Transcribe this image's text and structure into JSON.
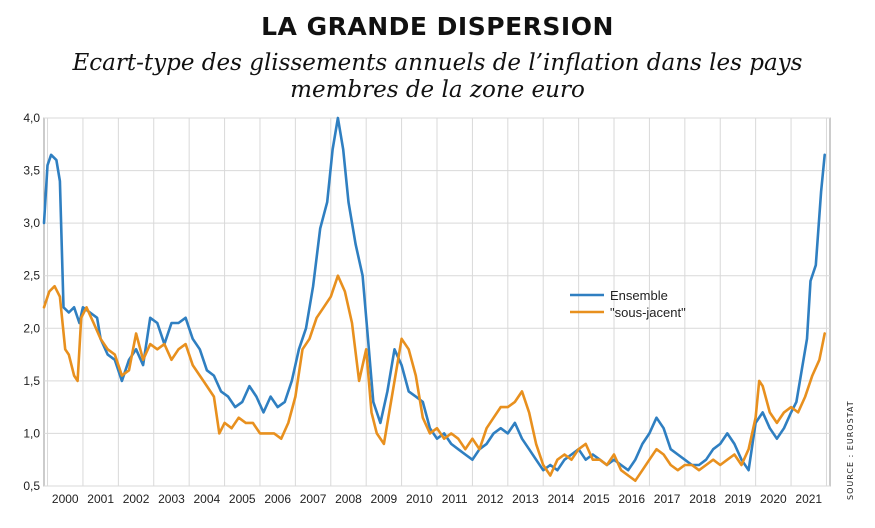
{
  "source": "SOURCE : EUROSTAT",
  "chart_data": {
    "type": "line",
    "title": "LA GRANDE DISPERSION",
    "subtitle": "Ecart-type des glissements annuels de l’inflation dans les pays membres de la zone  euro",
    "xlabel": "",
    "ylabel": "",
    "ylim": [
      0.5,
      4.0
    ],
    "xlim": [
      1999.9,
      2022.1
    ],
    "yticks": [
      "0,5",
      "1,0",
      "1,5",
      "2,0",
      "2,5",
      "3,0",
      "3,5",
      "4,0"
    ],
    "yticks_values": [
      0.5,
      1.0,
      1.5,
      2.0,
      2.5,
      3.0,
      3.5,
      4.0
    ],
    "xticks": [
      "2000",
      "2001",
      "2002",
      "2003",
      "2004",
      "2005",
      "2006",
      "2007",
      "2008",
      "2009",
      "2010",
      "2011",
      "2012",
      "2013",
      "2014",
      "2015",
      "2016",
      "2017",
      "2018",
      "2019",
      "2020",
      "2021"
    ],
    "grid": true,
    "legend_position": "right",
    "series": [
      {
        "name": "Ensemble",
        "color": "#2f7fc1",
        "points": [
          [
            1999.9,
            3.0
          ],
          [
            2000.0,
            3.55
          ],
          [
            2000.1,
            3.65
          ],
          [
            2000.25,
            3.6
          ],
          [
            2000.35,
            3.4
          ],
          [
            2000.45,
            2.2
          ],
          [
            2000.6,
            2.15
          ],
          [
            2000.75,
            2.2
          ],
          [
            2000.9,
            2.05
          ],
          [
            2001.0,
            2.2
          ],
          [
            2001.2,
            2.15
          ],
          [
            2001.4,
            2.1
          ],
          [
            2001.5,
            1.9
          ],
          [
            2001.7,
            1.75
          ],
          [
            2001.9,
            1.7
          ],
          [
            2002.1,
            1.5
          ],
          [
            2002.3,
            1.7
          ],
          [
            2002.5,
            1.8
          ],
          [
            2002.7,
            1.65
          ],
          [
            2002.9,
            2.1
          ],
          [
            2003.1,
            2.05
          ],
          [
            2003.3,
            1.85
          ],
          [
            2003.5,
            2.05
          ],
          [
            2003.7,
            2.05
          ],
          [
            2003.9,
            2.1
          ],
          [
            2004.1,
            1.9
          ],
          [
            2004.3,
            1.8
          ],
          [
            2004.5,
            1.6
          ],
          [
            2004.7,
            1.55
          ],
          [
            2004.9,
            1.4
          ],
          [
            2005.1,
            1.35
          ],
          [
            2005.3,
            1.25
          ],
          [
            2005.5,
            1.3
          ],
          [
            2005.7,
            1.45
          ],
          [
            2005.9,
            1.35
          ],
          [
            2006.1,
            1.2
          ],
          [
            2006.3,
            1.35
          ],
          [
            2006.5,
            1.25
          ],
          [
            2006.7,
            1.3
          ],
          [
            2006.9,
            1.5
          ],
          [
            2007.1,
            1.8
          ],
          [
            2007.3,
            2.0
          ],
          [
            2007.5,
            2.4
          ],
          [
            2007.7,
            2.95
          ],
          [
            2007.9,
            3.2
          ],
          [
            2008.05,
            3.7
          ],
          [
            2008.2,
            4.0
          ],
          [
            2008.35,
            3.7
          ],
          [
            2008.5,
            3.2
          ],
          [
            2008.7,
            2.8
          ],
          [
            2008.9,
            2.5
          ],
          [
            2009.05,
            1.9
          ],
          [
            2009.2,
            1.3
          ],
          [
            2009.4,
            1.1
          ],
          [
            2009.6,
            1.4
          ],
          [
            2009.8,
            1.8
          ],
          [
            2010.0,
            1.65
          ],
          [
            2010.2,
            1.4
          ],
          [
            2010.4,
            1.35
          ],
          [
            2010.6,
            1.3
          ],
          [
            2010.8,
            1.05
          ],
          [
            2011.0,
            0.95
          ],
          [
            2011.2,
            1.0
          ],
          [
            2011.4,
            0.9
          ],
          [
            2011.6,
            0.85
          ],
          [
            2011.8,
            0.8
          ],
          [
            2012.0,
            0.75
          ],
          [
            2012.2,
            0.85
          ],
          [
            2012.4,
            0.9
          ],
          [
            2012.6,
            1.0
          ],
          [
            2012.8,
            1.05
          ],
          [
            2013.0,
            1.0
          ],
          [
            2013.2,
            1.1
          ],
          [
            2013.4,
            0.95
          ],
          [
            2013.6,
            0.85
          ],
          [
            2013.8,
            0.75
          ],
          [
            2014.0,
            0.65
          ],
          [
            2014.2,
            0.7
          ],
          [
            2014.4,
            0.65
          ],
          [
            2014.6,
            0.75
          ],
          [
            2014.8,
            0.8
          ],
          [
            2015.0,
            0.85
          ],
          [
            2015.2,
            0.75
          ],
          [
            2015.4,
            0.8
          ],
          [
            2015.6,
            0.75
          ],
          [
            2015.8,
            0.7
          ],
          [
            2016.0,
            0.75
          ],
          [
            2016.2,
            0.7
          ],
          [
            2016.4,
            0.65
          ],
          [
            2016.6,
            0.75
          ],
          [
            2016.8,
            0.9
          ],
          [
            2017.0,
            1.0
          ],
          [
            2017.2,
            1.15
          ],
          [
            2017.4,
            1.05
          ],
          [
            2017.6,
            0.85
          ],
          [
            2017.8,
            0.8
          ],
          [
            2018.0,
            0.75
          ],
          [
            2018.2,
            0.7
          ],
          [
            2018.4,
            0.7
          ],
          [
            2018.6,
            0.75
          ],
          [
            2018.8,
            0.85
          ],
          [
            2019.0,
            0.9
          ],
          [
            2019.2,
            1.0
          ],
          [
            2019.4,
            0.9
          ],
          [
            2019.6,
            0.75
          ],
          [
            2019.8,
            0.65
          ],
          [
            2020.0,
            1.1
          ],
          [
            2020.2,
            1.2
          ],
          [
            2020.4,
            1.05
          ],
          [
            2020.6,
            0.95
          ],
          [
            2020.8,
            1.05
          ],
          [
            2021.0,
            1.2
          ],
          [
            2021.15,
            1.3
          ],
          [
            2021.3,
            1.6
          ],
          [
            2021.45,
            1.9
          ],
          [
            2021.55,
            2.45
          ],
          [
            2021.7,
            2.6
          ],
          [
            2021.85,
            3.3
          ],
          [
            2021.95,
            3.65
          ]
        ]
      },
      {
        "name": "\"sous-jacent\"",
        "color": "#e8901e",
        "points": [
          [
            1999.9,
            2.2
          ],
          [
            2000.05,
            2.35
          ],
          [
            2000.2,
            2.4
          ],
          [
            2000.35,
            2.3
          ],
          [
            2000.5,
            1.8
          ],
          [
            2000.6,
            1.75
          ],
          [
            2000.75,
            1.55
          ],
          [
            2000.85,
            1.5
          ],
          [
            2000.95,
            2.1
          ],
          [
            2001.1,
            2.2
          ],
          [
            2001.3,
            2.05
          ],
          [
            2001.5,
            1.9
          ],
          [
            2001.7,
            1.8
          ],
          [
            2001.9,
            1.75
          ],
          [
            2002.1,
            1.55
          ],
          [
            2002.3,
            1.6
          ],
          [
            2002.5,
            1.95
          ],
          [
            2002.7,
            1.7
          ],
          [
            2002.9,
            1.85
          ],
          [
            2003.1,
            1.8
          ],
          [
            2003.3,
            1.85
          ],
          [
            2003.5,
            1.7
          ],
          [
            2003.7,
            1.8
          ],
          [
            2003.9,
            1.85
          ],
          [
            2004.1,
            1.65
          ],
          [
            2004.3,
            1.55
          ],
          [
            2004.5,
            1.45
          ],
          [
            2004.7,
            1.35
          ],
          [
            2004.85,
            1.0
          ],
          [
            2005.0,
            1.1
          ],
          [
            2005.2,
            1.05
          ],
          [
            2005.4,
            1.15
          ],
          [
            2005.6,
            1.1
          ],
          [
            2005.8,
            1.1
          ],
          [
            2006.0,
            1.0
          ],
          [
            2006.2,
            1.0
          ],
          [
            2006.4,
            1.0
          ],
          [
            2006.6,
            0.95
          ],
          [
            2006.8,
            1.1
          ],
          [
            2007.0,
            1.35
          ],
          [
            2007.2,
            1.8
          ],
          [
            2007.4,
            1.9
          ],
          [
            2007.6,
            2.1
          ],
          [
            2007.8,
            2.2
          ],
          [
            2008.0,
            2.3
          ],
          [
            2008.2,
            2.5
          ],
          [
            2008.4,
            2.35
          ],
          [
            2008.6,
            2.05
          ],
          [
            2008.8,
            1.5
          ],
          [
            2009.0,
            1.8
          ],
          [
            2009.15,
            1.2
          ],
          [
            2009.3,
            1.0
          ],
          [
            2009.5,
            0.9
          ],
          [
            2009.7,
            1.3
          ],
          [
            2009.9,
            1.7
          ],
          [
            2010.0,
            1.9
          ],
          [
            2010.2,
            1.8
          ],
          [
            2010.4,
            1.55
          ],
          [
            2010.6,
            1.15
          ],
          [
            2010.8,
            1.0
          ],
          [
            2011.0,
            1.05
          ],
          [
            2011.2,
            0.95
          ],
          [
            2011.4,
            1.0
          ],
          [
            2011.6,
            0.95
          ],
          [
            2011.8,
            0.85
          ],
          [
            2012.0,
            0.95
          ],
          [
            2012.2,
            0.85
          ],
          [
            2012.4,
            1.05
          ],
          [
            2012.6,
            1.15
          ],
          [
            2012.8,
            1.25
          ],
          [
            2013.0,
            1.25
          ],
          [
            2013.2,
            1.3
          ],
          [
            2013.4,
            1.4
          ],
          [
            2013.6,
            1.2
          ],
          [
            2013.8,
            0.9
          ],
          [
            2014.0,
            0.7
          ],
          [
            2014.2,
            0.6
          ],
          [
            2014.4,
            0.75
          ],
          [
            2014.6,
            0.8
          ],
          [
            2014.8,
            0.75
          ],
          [
            2015.0,
            0.85
          ],
          [
            2015.2,
            0.9
          ],
          [
            2015.4,
            0.75
          ],
          [
            2015.6,
            0.75
          ],
          [
            2015.8,
            0.7
          ],
          [
            2016.0,
            0.8
          ],
          [
            2016.2,
            0.65
          ],
          [
            2016.4,
            0.6
          ],
          [
            2016.6,
            0.55
          ],
          [
            2016.8,
            0.65
          ],
          [
            2017.0,
            0.75
          ],
          [
            2017.2,
            0.85
          ],
          [
            2017.4,
            0.8
          ],
          [
            2017.6,
            0.7
          ],
          [
            2017.8,
            0.65
          ],
          [
            2018.0,
            0.7
          ],
          [
            2018.2,
            0.7
          ],
          [
            2018.4,
            0.65
          ],
          [
            2018.6,
            0.7
          ],
          [
            2018.8,
            0.75
          ],
          [
            2019.0,
            0.7
          ],
          [
            2019.2,
            0.75
          ],
          [
            2019.4,
            0.8
          ],
          [
            2019.6,
            0.7
          ],
          [
            2019.8,
            0.85
          ],
          [
            2020.0,
            1.15
          ],
          [
            2020.1,
            1.5
          ],
          [
            2020.2,
            1.45
          ],
          [
            2020.4,
            1.2
          ],
          [
            2020.6,
            1.1
          ],
          [
            2020.8,
            1.2
          ],
          [
            2021.0,
            1.25
          ],
          [
            2021.2,
            1.2
          ],
          [
            2021.4,
            1.35
          ],
          [
            2021.6,
            1.55
          ],
          [
            2021.8,
            1.7
          ],
          [
            2021.95,
            1.95
          ]
        ]
      }
    ]
  }
}
